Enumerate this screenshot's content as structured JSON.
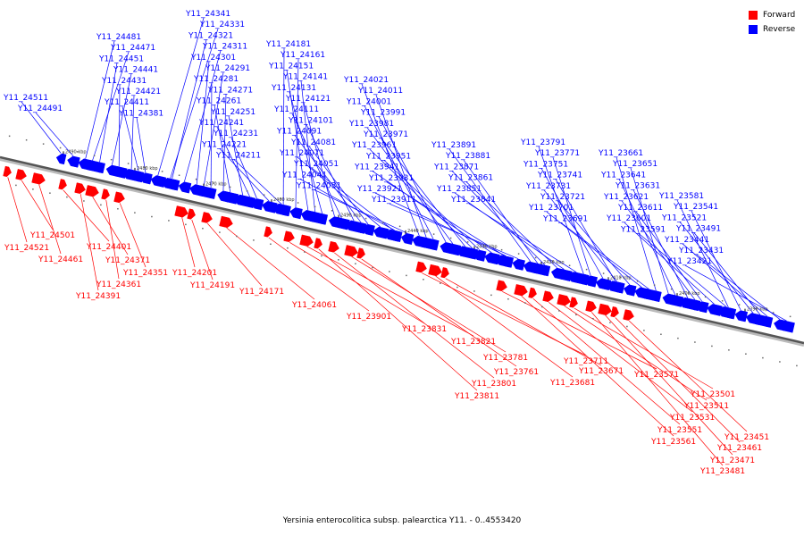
{
  "legend": {
    "forward_label": "Forward",
    "reverse_label": "Reverse",
    "forward_color": "#ff0000",
    "reverse_color": "#0000ff"
  },
  "caption": "Yersinia enterocolitica subsp. palearctica Y11. - 0..4553420",
  "backbone": {
    "kbp_marks": [
      "2490 kbp",
      "2480 kbp",
      "2470 kbp",
      "2460 kbp",
      "2450 kbp",
      "2440 kbp",
      "2430 kbp",
      "2420 kbp",
      "2410 kbp",
      "2400 kbp",
      "2390 kbp"
    ]
  },
  "genes": {
    "reverse": [
      "Y11_24511",
      "Y11_24491",
      "Y11_24481",
      "Y11_24471",
      "Y11_24451",
      "Y11_24441",
      "Y11_24431",
      "Y11_24421",
      "Y11_24411",
      "Y11_24381",
      "Y11_24341",
      "Y11_24331",
      "Y11_24321",
      "Y11_24311",
      "Y11_24301",
      "Y11_24291",
      "Y11_24281",
      "Y11_24271",
      "Y11_24261",
      "Y11_24251",
      "Y11_24241",
      "Y11_24231",
      "Y11_24221",
      "Y11_24211",
      "Y11_24181",
      "Y11_24161",
      "Y11_24151",
      "Y11_24141",
      "Y11_24131",
      "Y11_24121",
      "Y11_24111",
      "Y11_24101",
      "Y11_24091",
      "Y11_24081",
      "Y11_24071",
      "Y11_24051",
      "Y11_24041",
      "Y11_24031",
      "Y11_24021",
      "Y11_24011",
      "Y11_24001",
      "Y11_23991",
      "Y11_23981",
      "Y11_23971",
      "Y11_23961",
      "Y11_23951",
      "Y11_23941",
      "Y11_23931",
      "Y11_23921",
      "Y11_23911",
      "Y11_23891",
      "Y11_23881",
      "Y11_23871",
      "Y11_23861",
      "Y11_23851",
      "Y11_23841",
      "Y11_23791",
      "Y11_23771",
      "Y11_23751",
      "Y11_23741",
      "Y11_23731",
      "Y11_23721",
      "Y11_23701",
      "Y11_23691",
      "Y11_23661",
      "Y11_23651",
      "Y11_23641",
      "Y11_23631",
      "Y11_23621",
      "Y11_23611",
      "Y11_23601",
      "Y11_23591",
      "Y11_23581",
      "Y11_23541",
      "Y11_23521",
      "Y11_23491",
      "Y11_23441",
      "Y11_23431",
      "Y11_23421"
    ],
    "forward": [
      "Y11_24521",
      "Y11_24501",
      "Y11_24461",
      "Y11_24401",
      "Y11_24391",
      "Y11_24371",
      "Y11_24361",
      "Y11_24351",
      "Y11_24201",
      "Y11_24191",
      "Y11_24171",
      "Y11_24061",
      "Y11_23901",
      "Y11_23831",
      "Y11_23821",
      "Y11_23811",
      "Y11_23801",
      "Y11_23781",
      "Y11_23761",
      "Y11_23711",
      "Y11_23681",
      "Y11_23671",
      "Y11_23571",
      "Y11_23561",
      "Y11_23551",
      "Y11_23531",
      "Y11_23511",
      "Y11_23501",
      "Y11_23481",
      "Y11_23471",
      "Y11_23461",
      "Y11_23451"
    ]
  }
}
